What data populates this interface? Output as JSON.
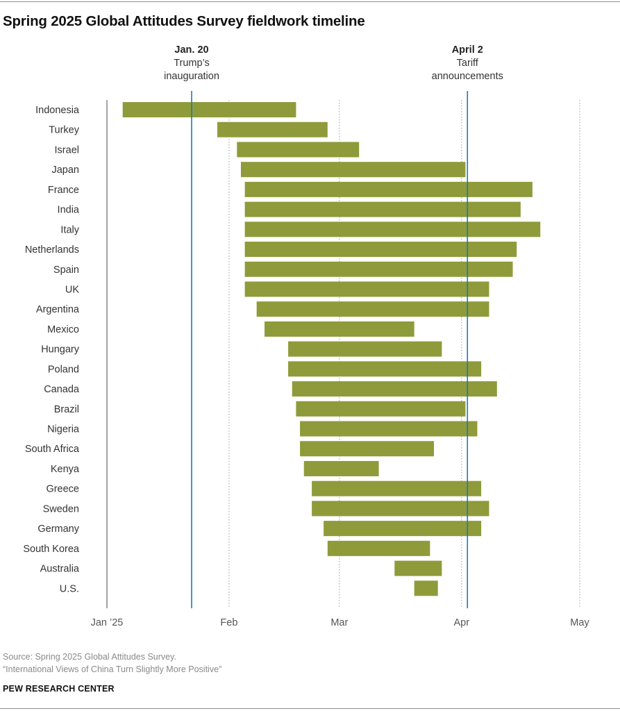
{
  "title": "Spring 2025 Global Attitudes Survey fieldwork timeline",
  "footer": {
    "source": "Source: Spring 2025 Global Attitudes Survey.",
    "report": "“International Views of China Turn Slightly More Positive”",
    "brand": "PEW RESEARCH CENTER"
  },
  "colors": {
    "bar": "#8f9b3a",
    "event_line": "#1f78b4",
    "baseline": "#666666",
    "grid": "#9a9a9a",
    "label": "#333333"
  },
  "chart_data": {
    "type": "bar",
    "orientation": "horizontal-range",
    "title": "Spring 2025 Global Attitudes Survey fieldwork timeline",
    "xlabel": "",
    "ylabel": "",
    "x_units": "days since Jan 1, 2025",
    "xlim": [
      0,
      120
    ],
    "ticks": [
      {
        "day": 0,
        "label": "Jan ’25"
      },
      {
        "day": 31,
        "label": "Feb"
      },
      {
        "day": 59,
        "label": "Mar"
      },
      {
        "day": 90,
        "label": "Apr"
      },
      {
        "day": 120,
        "label": "May"
      }
    ],
    "events": [
      {
        "day": 21.5,
        "date": "Jan. 20",
        "line1": "Trump’s",
        "line2": "inauguration"
      },
      {
        "day": 91.5,
        "date": "April 2",
        "line1": "Tariff",
        "line2": "announcements"
      }
    ],
    "categories": [
      "Indonesia",
      "Turkey",
      "Israel",
      "Japan",
      "France",
      "India",
      "Italy",
      "Netherlands",
      "Spain",
      "UK",
      "Argentina",
      "Mexico",
      "Hungary",
      "Poland",
      "Canada",
      "Brazil",
      "Nigeria",
      "South Africa",
      "Kenya",
      "Greece",
      "Sweden",
      "Germany",
      "South Korea",
      "Australia",
      "U.S."
    ],
    "series": [
      {
        "name": "Fieldwork period",
        "start": [
          4,
          28,
          33,
          34,
          35,
          35,
          35,
          35,
          35,
          35,
          38,
          40,
          46,
          46,
          47,
          48,
          49,
          49,
          50,
          52,
          52,
          55,
          56,
          73,
          78
        ],
        "end": [
          48,
          56,
          64,
          91,
          108,
          105,
          110,
          104,
          103,
          97,
          97,
          78,
          85,
          95,
          99,
          91,
          94,
          83,
          69,
          95,
          97,
          95,
          82,
          85,
          84
        ]
      }
    ]
  }
}
